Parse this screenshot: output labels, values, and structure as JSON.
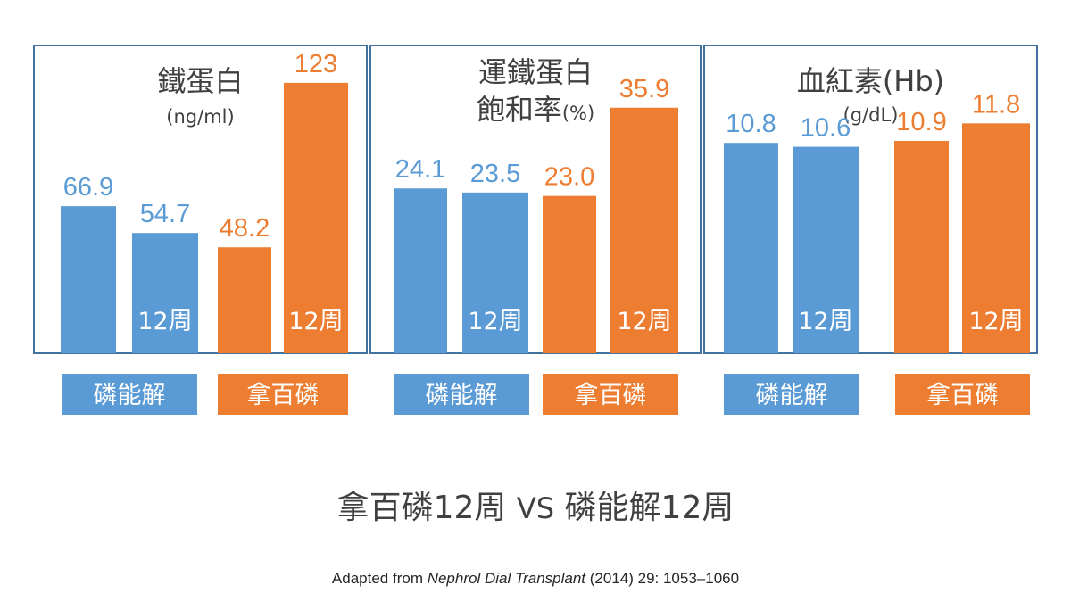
{
  "colors": {
    "blue": "#5b9bd5",
    "orange": "#ed7d31",
    "frame": "#41719c",
    "text": "#404040"
  },
  "chart_data": [
    {
      "type": "bar",
      "title_lines": [
        "鐵蛋白"
      ],
      "unit": "(ng/ml)",
      "ylim": [
        0,
        140
      ],
      "categories": [
        "磷能解",
        "",
        "拿百磷",
        "12周"
      ],
      "groups": [
        "磷能解",
        "拿百磷"
      ],
      "bars": [
        {
          "group": "磷能解",
          "value": 66.9,
          "label": "66.9",
          "inner_label": ""
        },
        {
          "group": "磷能解",
          "value": 54.7,
          "label": "54.7",
          "inner_label": "12周"
        },
        {
          "group": "拿百磷",
          "value": 48.2,
          "label": "48.2",
          "inner_label": ""
        },
        {
          "group": "拿百磷",
          "value": 123,
          "label": "123",
          "inner_label": "12周"
        }
      ]
    },
    {
      "type": "bar",
      "title_lines": [
        "運鐵蛋白",
        "飽和率"
      ],
      "unit": "(%)",
      "ylim": [
        0,
        45
      ],
      "groups": [
        "磷能解",
        "拿百磷"
      ],
      "bars": [
        {
          "group": "磷能解",
          "value": 24.1,
          "label": "24.1",
          "inner_label": ""
        },
        {
          "group": "磷能解",
          "value": 23.5,
          "label": "23.5",
          "inner_label": "12周"
        },
        {
          "group": "拿百磷",
          "value": 23.0,
          "label": "23.0",
          "inner_label": ""
        },
        {
          "group": "拿百磷",
          "value": 35.9,
          "label": "35.9",
          "inner_label": "12周"
        }
      ]
    },
    {
      "type": "bar",
      "title_lines": [
        "血紅素(Hb)"
      ],
      "unit": "(g/dL)",
      "ylim": [
        0,
        15.8
      ],
      "groups": [
        "磷能解",
        "拿百磷"
      ],
      "bars": [
        {
          "group": "磷能解",
          "value": 10.8,
          "label": "10.8",
          "inner_label": ""
        },
        {
          "group": "磷能解",
          "value": 10.6,
          "label": "10.6",
          "inner_label": "12周"
        },
        {
          "group": "拿百磷",
          "value": 10.9,
          "label": "10.9",
          "inner_label": ""
        },
        {
          "group": "拿百磷",
          "value": 11.8,
          "label": "11.8",
          "inner_label": "12周"
        }
      ]
    }
  ],
  "subtitle": {
    "left": "拿百磷12周",
    "vs": "VS",
    "right": "磷能解12周"
  },
  "citation": {
    "prefix": "Adapted from ",
    "journal": "Nephrol Dial Transplant",
    "suffix": " (2014) 29: 1053–1060"
  }
}
